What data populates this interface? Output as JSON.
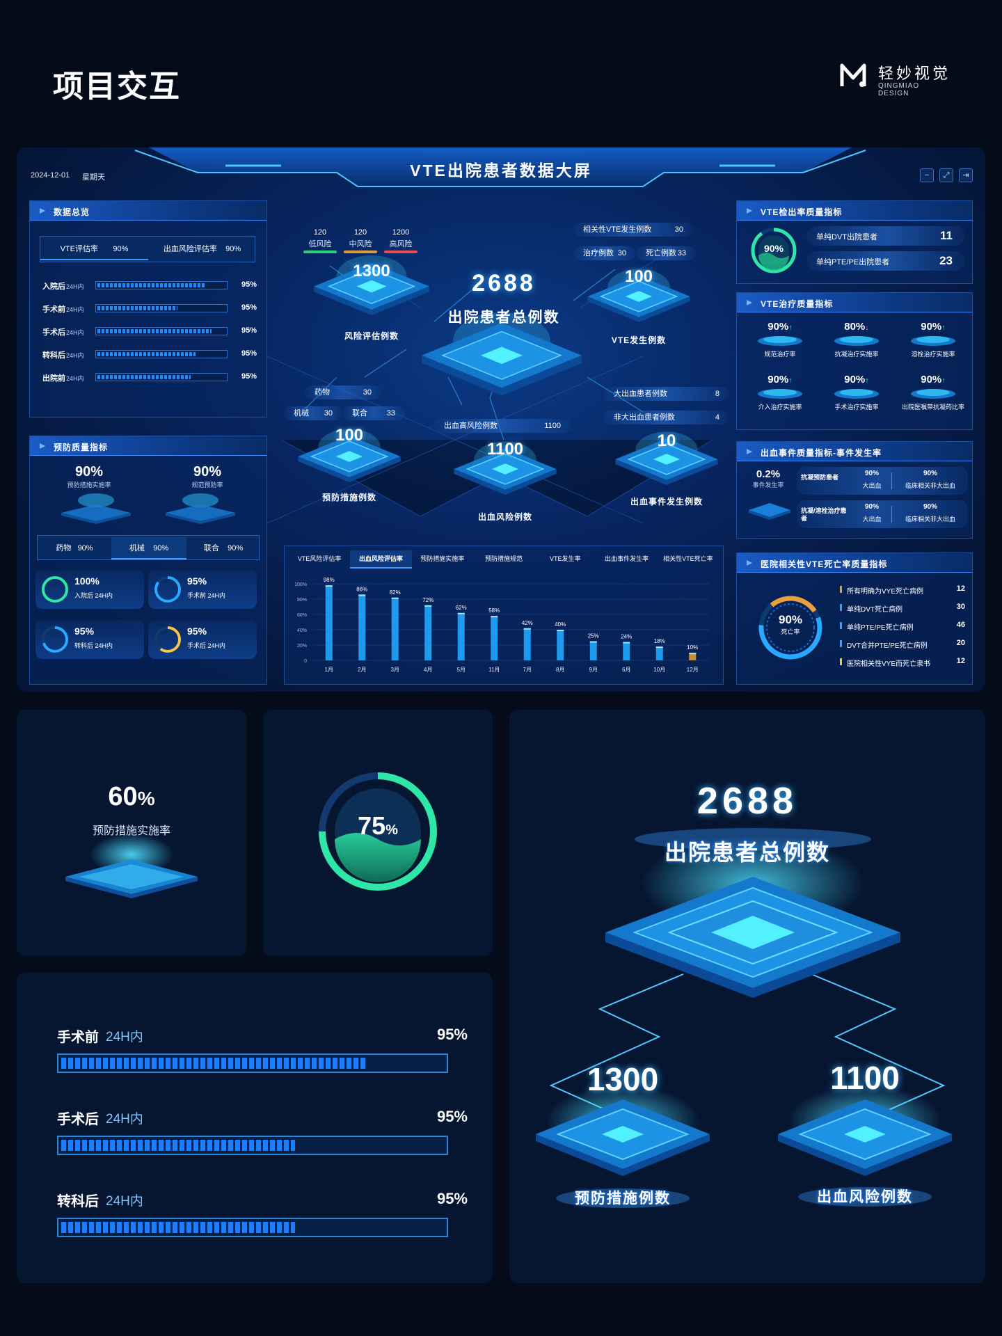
{
  "page": {
    "title": "项目交互",
    "brand_cn": "轻妙视觉",
    "brand_en": "QINGMIAO DESIGN"
  },
  "dashboard": {
    "title": "VTE出院患者数据大屏",
    "date": "2024-12-01",
    "weekday": "星期天",
    "window_buttons": [
      "−",
      "⤢",
      "⇥"
    ],
    "overview": {
      "title": "数据总览",
      "tabs": [
        {
          "label": "VTE评估率",
          "value": "90%"
        },
        {
          "label": "出血风险评估率",
          "value": "90%"
        }
      ],
      "rows": [
        {
          "label": "入院后",
          "sub": "24H内",
          "value": "95%",
          "level": 0.83
        },
        {
          "label": "手术前",
          "sub": "24H内",
          "value": "95%",
          "level": 0.62
        },
        {
          "label": "手术后",
          "sub": "24H内",
          "value": "95%",
          "level": 0.88
        },
        {
          "label": "转科后",
          "sub": "24H内",
          "value": "95%",
          "level": 0.76
        },
        {
          "label": "出院前",
          "sub": "24H内",
          "value": "95%",
          "level": 0.72
        }
      ]
    },
    "prevention": {
      "title": "预防质量指标",
      "items": [
        {
          "value": "90%",
          "label": "预防措施实施率"
        },
        {
          "value": "90%",
          "label": "规范预防率"
        }
      ],
      "tabs": [
        {
          "label": "药物",
          "value": "90%"
        },
        {
          "label": "机械",
          "value": "90%"
        },
        {
          "label": "联合",
          "value": "90%"
        }
      ],
      "rings": [
        {
          "value": "100%",
          "label": "入院后 24H内",
          "color": "#2ee6a6",
          "level": 1.0
        },
        {
          "value": "95%",
          "label": "手术前 24H内",
          "color": "#2aa8ff",
          "level": 0.85
        },
        {
          "value": "95%",
          "label": "转科后 24H内",
          "color": "#2aa8ff",
          "level": 0.7
        },
        {
          "value": "95%",
          "label": "手术后 24H内",
          "color": "#f5c34a",
          "level": 0.6
        }
      ]
    },
    "center": {
      "risk_levels": [
        {
          "value": "120",
          "label": "低风险",
          "color": "#2ecf7a"
        },
        {
          "value": "120",
          "label": "中风险",
          "color": "#e0993a"
        },
        {
          "value": "1200",
          "label": "高风险",
          "color": "#e84c4c"
        }
      ],
      "risk_eval": {
        "value": "1300",
        "label": "风险评估例数"
      },
      "total": {
        "value": "2688",
        "label": "出院患者总例数"
      },
      "vte": {
        "value": "100",
        "label": "VTE发生例数",
        "related_label": "相关性VTE发生例数",
        "related_value": "30",
        "treat_label": "治疗例数",
        "treat_value": "30",
        "death_label": "死亡例数",
        "death_value": "33"
      },
      "prevent": {
        "value": "100",
        "label": "预防措施例数",
        "drug_label": "药物",
        "drug_value": "30",
        "mech_label": "机械",
        "mech_value": "30",
        "combo_label": "联合",
        "combo_value": "33"
      },
      "bleed_risk": {
        "value": "1100",
        "label": "出血风险例数",
        "high_label": "出血高风险例数",
        "high_value": "1100"
      },
      "bleed_event": {
        "value": "10",
        "label": "出血事件发生例数",
        "major_label": "大出血患者例数",
        "major_value": "8",
        "minor_label": "非大出血患者例数",
        "minor_value": "4"
      }
    },
    "chart_tabs": [
      "VTE风险评估率",
      "出血风险评估率",
      "预防措施实施率",
      "预防措施规范",
      "VTE发生率",
      "出血事件发生率",
      "相关性VTE死亡率"
    ],
    "chart_active": 1,
    "right": {
      "detect": {
        "title": "VTE检出率质量指标",
        "ring": "90%",
        "rows": [
          {
            "label": "单纯DVT出院患者",
            "value": "11"
          },
          {
            "label": "单纯PTE/PE出院患者",
            "value": "23"
          }
        ]
      },
      "treat": {
        "title": "VTE治疗质量指标",
        "items": [
          {
            "value": "90%",
            "arrow": "↑",
            "label": "规范治疗率",
            "up": true
          },
          {
            "value": "80%",
            "arrow": "↓",
            "label": "抗凝治疗实施率",
            "up": false
          },
          {
            "value": "90%",
            "arrow": "↑",
            "label": "溶栓治疗实施率",
            "up": true
          },
          {
            "value": "90%",
            "arrow": "↑",
            "label": "介入治疗实施率",
            "up": true
          },
          {
            "value": "90%",
            "arrow": "↑",
            "label": "手术治疗实施率",
            "up": true
          },
          {
            "value": "90%",
            "arrow": "↑",
            "label": "出院医嘱带抗凝药比率",
            "up": true
          }
        ]
      },
      "bleed": {
        "title": "出血事件质量指标-事件发生率",
        "rate": "0.2%",
        "rate_label": "事件发生率",
        "rows": [
          {
            "label": "抗凝预防患者",
            "a": "90%",
            "a_label": "大出血",
            "b": "90%",
            "b_label": "临床相关非大出血"
          },
          {
            "label": "抗凝/溶栓治疗患者",
            "a": "90%",
            "a_label": "大出血",
            "b": "90%",
            "b_label": "临床相关非大出血"
          }
        ]
      },
      "death": {
        "title": "医院相关性VTE死亡率质量指标",
        "ring": "90%",
        "ring_label": "死亡率",
        "rows": [
          {
            "label": "所有明确为VYE死亡病例",
            "value": "12",
            "color": "#e8a03a"
          },
          {
            "label": "单纯DVT死亡病例",
            "value": "30",
            "color": "#2aa8ff"
          },
          {
            "label": "单纯PTE/PE死亡病例",
            "value": "46",
            "color": "#2aa8ff"
          },
          {
            "label": "DVT合并PTE/PE死亡病例",
            "value": "20",
            "color": "#2aa8ff"
          },
          {
            "label": "医院相关性VYE而死亡隶书",
            "value": "12",
            "color": "#f5c34a"
          }
        ]
      }
    }
  },
  "chart_data": {
    "type": "bar",
    "categories": [
      "1月",
      "2月",
      "3月",
      "4月",
      "5月",
      "11月",
      "7月",
      "8月",
      "9月",
      "6月",
      "10月",
      "12月"
    ],
    "values": [
      98,
      86,
      82,
      72,
      62,
      58,
      42,
      40,
      25,
      24,
      18,
      10
    ],
    "value_labels": [
      "98%",
      "86%",
      "82%",
      "72%",
      "62%",
      "58%",
      "42%",
      "40%",
      "25%",
      "24%",
      "18%",
      "10%"
    ],
    "yticks": [
      "100%",
      "80%",
      "60%",
      "40%",
      "20%",
      "0"
    ],
    "ylim": [
      0,
      100
    ]
  },
  "cards": {
    "card1": {
      "value": "60",
      "unit": "%",
      "label": "预防措施实施率"
    },
    "card2": {
      "value": "75",
      "unit": "%",
      "level": 0.75
    },
    "card3": {
      "rows": [
        {
          "label": "手术前",
          "sub": "24H内",
          "value": "95%",
          "level": 0.8
        },
        {
          "label": "手术后",
          "sub": "24H内",
          "value": "95%",
          "level": 0.61
        },
        {
          "label": "转科后",
          "sub": "24H内",
          "value": "95%",
          "level": 0.61
        }
      ]
    },
    "card4": {
      "total": "2688",
      "total_label": "出院患者总例数",
      "left": "1300",
      "left_label": "预防措施例数",
      "right": "1100",
      "right_label": "出血风险例数"
    }
  }
}
